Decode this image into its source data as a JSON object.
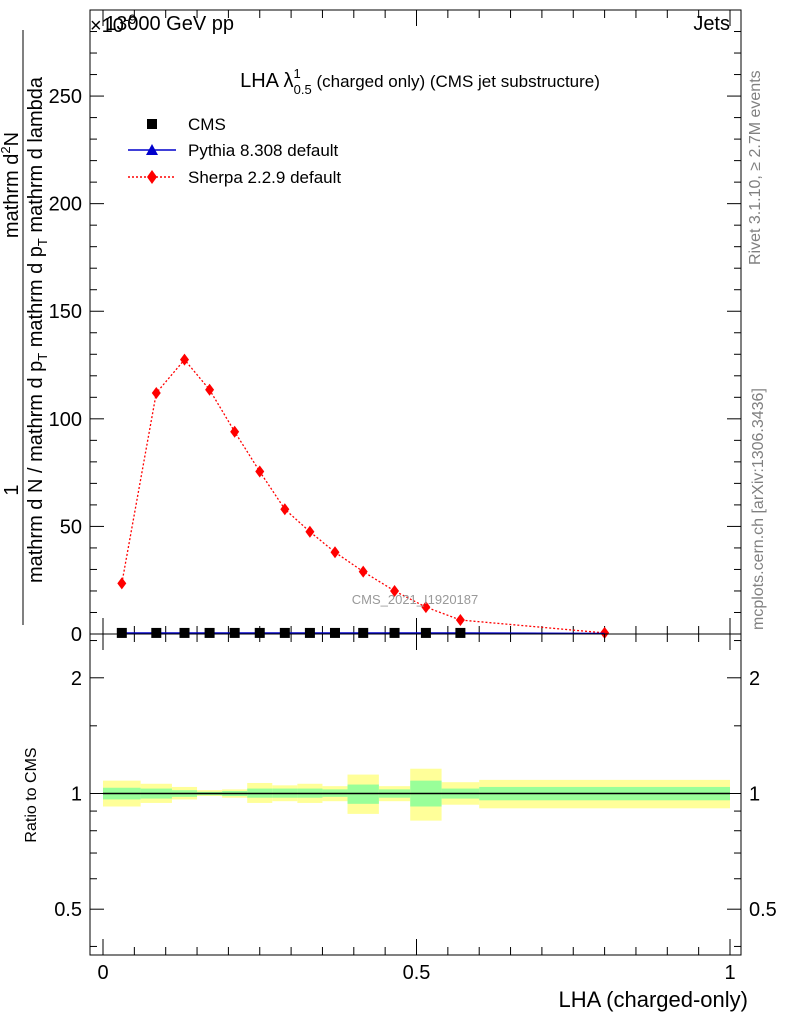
{
  "header": {
    "exponent_label": "×10",
    "exponent_power": "-9",
    "energy_label": "13000 GeV pp",
    "category_label": "Jets"
  },
  "side_labels": {
    "rivet": "Rivet 3.1.10, ≥ 2.7M events",
    "mcplots": "mcplots.cern.ch [arXiv:1306.3436]"
  },
  "chart_data": [
    {
      "type": "line",
      "title": "LHA λ",
      "title_sup": "1",
      "title_sub": "0.5",
      "title_rest": " (charged only) (CMS jet substructure)",
      "ylabel_numerator": "1",
      "ylabel_denominator": "mathrm d N / mathrm d p",
      "ylabel_denominator_sub": "T",
      "ylabel_denominator_rest": " mathrm d p",
      "ylabel_denominator_sub2": "T",
      "ylabel_denominator_rest2": " mathrm d lambda",
      "ylabel_top": "mathrm d",
      "ylabel_top_sup": "2",
      "ylabel_top_rest": "N",
      "xlim": [
        0,
        1
      ],
      "ylim": [
        0,
        290
      ],
      "yticks": [
        0,
        50,
        100,
        150,
        200,
        250
      ],
      "ytick_labels": [
        "0",
        "50",
        "100",
        "150",
        "200",
        "250"
      ],
      "watermark": "CMS_2021_I1920187",
      "legend_position": "top-left",
      "series": [
        {
          "name": "CMS",
          "color": "#000000",
          "marker": "square",
          "x": [
            0.03,
            0.085,
            0.13,
            0.17,
            0.21,
            0.25,
            0.29,
            0.33,
            0.37,
            0.415,
            0.465,
            0.515,
            0.57
          ],
          "y": [
            0.5,
            0.5,
            0.5,
            0.5,
            0.5,
            0.5,
            0.5,
            0.5,
            0.5,
            0.5,
            0.5,
            0.5,
            0.5
          ]
        },
        {
          "name": "Pythia 8.308 default",
          "color": "#0000cc",
          "marker": "triangle",
          "x": [
            0.03,
            0.085,
            0.13,
            0.17,
            0.21,
            0.25,
            0.29,
            0.33,
            0.37,
            0.415,
            0.465,
            0.515,
            0.57,
            0.8
          ],
          "y": [
            0.5,
            0.5,
            0.5,
            0.5,
            0.5,
            0.5,
            0.5,
            0.5,
            0.5,
            0.5,
            0.5,
            0.5,
            0.5,
            0.3
          ]
        },
        {
          "name": "Sherpa 2.2.9 default",
          "color": "#ff0000",
          "marker": "diamond",
          "x": [
            0.03,
            0.085,
            0.13,
            0.17,
            0.21,
            0.25,
            0.29,
            0.33,
            0.37,
            0.415,
            0.465,
            0.515,
            0.57,
            0.8
          ],
          "y": [
            23.5,
            112,
            127.5,
            113.5,
            94,
            75.5,
            58,
            47.5,
            38,
            29,
            20,
            12.5,
            6.5,
            0.5
          ]
        }
      ]
    },
    {
      "type": "area",
      "ylabel": "Ratio to CMS",
      "xlabel": "LHA (charged-only)",
      "xlim": [
        0,
        1
      ],
      "ylim": [
        0.38,
        2.6
      ],
      "log_scale_y": true,
      "yticks": [
        0.5,
        1,
        2
      ],
      "ytick_labels": [
        "0.5",
        "1",
        "2"
      ],
      "xticks": [
        0,
        0.5,
        1
      ],
      "xtick_labels": [
        "0",
        "0.5",
        "1"
      ],
      "bins": [
        {
          "x0": 0.0,
          "x1": 0.06,
          "green": [
            0.965,
            1.035
          ],
          "yellow": [
            0.925,
            1.08
          ]
        },
        {
          "x0": 0.06,
          "x1": 0.11,
          "green": [
            0.97,
            1.03
          ],
          "yellow": [
            0.945,
            1.06
          ]
        },
        {
          "x0": 0.11,
          "x1": 0.15,
          "green": [
            0.98,
            1.02
          ],
          "yellow": [
            0.965,
            1.04
          ]
        },
        {
          "x0": 0.15,
          "x1": 0.19,
          "green": [
            0.99,
            1.01
          ],
          "yellow": [
            0.985,
            1.02
          ]
        },
        {
          "x0": 0.19,
          "x1": 0.23,
          "green": [
            0.985,
            1.015
          ],
          "yellow": [
            0.975,
            1.025
          ]
        },
        {
          "x0": 0.23,
          "x1": 0.27,
          "green": [
            0.975,
            1.03
          ],
          "yellow": [
            0.945,
            1.065
          ]
        },
        {
          "x0": 0.27,
          "x1": 0.31,
          "green": [
            0.975,
            1.03
          ],
          "yellow": [
            0.955,
            1.05
          ]
        },
        {
          "x0": 0.31,
          "x1": 0.35,
          "green": [
            0.975,
            1.03
          ],
          "yellow": [
            0.945,
            1.06
          ]
        },
        {
          "x0": 0.35,
          "x1": 0.39,
          "green": [
            0.98,
            1.025
          ],
          "yellow": [
            0.955,
            1.045
          ]
        },
        {
          "x0": 0.39,
          "x1": 0.44,
          "green": [
            0.94,
            1.055
          ],
          "yellow": [
            0.885,
            1.12
          ]
        },
        {
          "x0": 0.44,
          "x1": 0.49,
          "green": [
            0.975,
            1.025
          ],
          "yellow": [
            0.955,
            1.045
          ]
        },
        {
          "x0": 0.49,
          "x1": 0.54,
          "green": [
            0.925,
            1.08
          ],
          "yellow": [
            0.85,
            1.16
          ]
        },
        {
          "x0": 0.54,
          "x1": 0.6,
          "green": [
            0.97,
            1.03
          ],
          "yellow": [
            0.935,
            1.07
          ]
        },
        {
          "x0": 0.6,
          "x1": 1.0,
          "green": [
            0.96,
            1.04
          ],
          "yellow": [
            0.915,
            1.085
          ]
        }
      ]
    }
  ]
}
